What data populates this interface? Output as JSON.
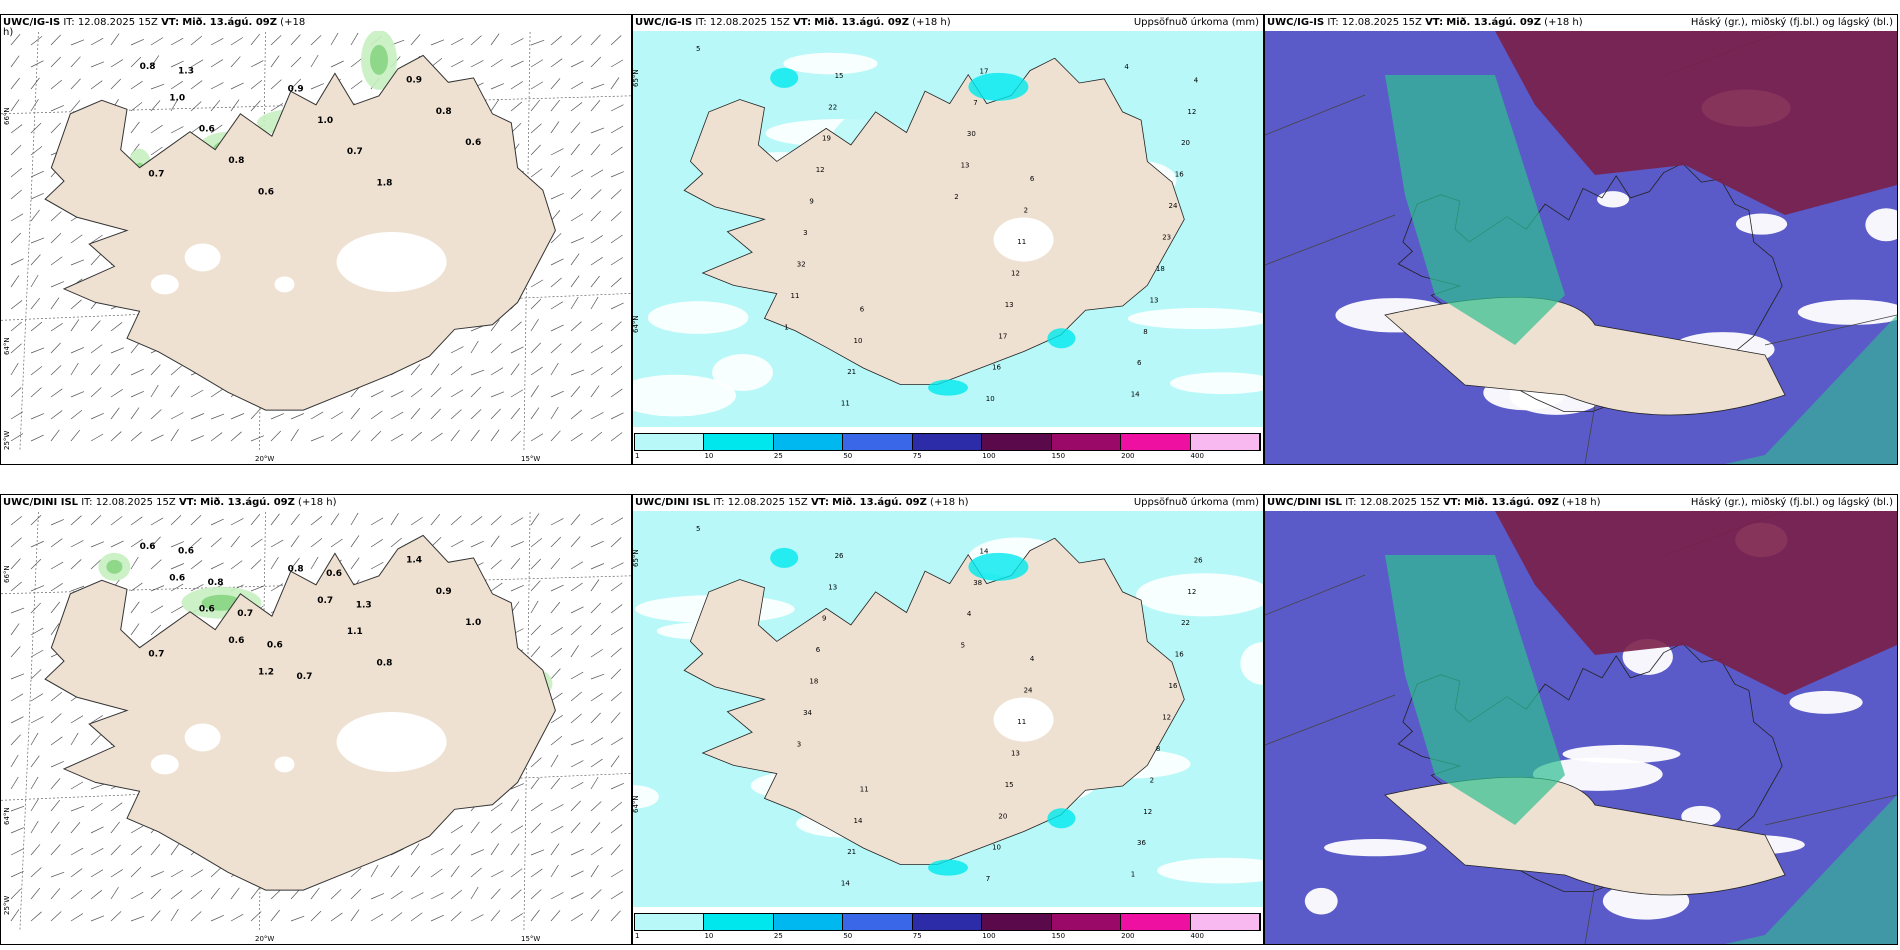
{
  "rows": [
    {
      "model": "UWC/IG-IS",
      "it_label": "IT:",
      "it_value": "12.08.2025 15Z",
      "vt_label": "VT:",
      "vt_value": "Mið. 13.ágú. 09Z",
      "lead": "(+18",
      "lead2": "h)",
      "lead_full": "(+18 h)",
      "precip_title": "Uppsöfnuð úrkoma (mm)",
      "cloud_title": "Háský (gr.), miðský (fj.bl.) og lágský (bl.)",
      "wind_labels": [
        "0.8",
        "1.0",
        "0.6",
        "0.8",
        "0.6",
        "0.9",
        "1.0",
        "0.7",
        "1.8",
        "0.9",
        "0.8",
        "0.6",
        "0.7",
        "1.3"
      ],
      "precip_labels": [
        "5",
        "6",
        "6",
        "4",
        "2",
        "10",
        "12",
        "11",
        "21",
        "20",
        "12",
        "11",
        "16",
        "13",
        "15",
        "24",
        "17",
        "22",
        "23",
        "16",
        "19",
        "18",
        "10",
        "12",
        "13",
        "17",
        "9",
        "8",
        "7",
        "3",
        "6",
        "30",
        "32",
        "14",
        "13",
        "11",
        "4",
        "2",
        "1"
      ]
    },
    {
      "model": "UWC/DINI ISL",
      "it_label": "IT:",
      "it_value": "12.08.2025 15Z",
      "vt_label": "VT:",
      "vt_value": "Mið. 13.ágú. 09Z",
      "lead_full": "(+18 h)",
      "precip_title": "Uppsöfnuð úrkoma (mm)",
      "cloud_title": "Háský (gr.), miðský (fj.bl.) og lágský (bl.)",
      "wind_labels": [
        "0.6",
        "0.6",
        "0.6",
        "0.6",
        "1.2",
        "0.8",
        "0.7",
        "1.1",
        "0.8",
        "1.4",
        "0.9",
        "1.0",
        "0.7",
        "0.6",
        "0.8",
        "0.7",
        "0.6",
        "0.7",
        "0.6",
        "1.3"
      ],
      "precip_labels": [
        "5",
        "4",
        "11",
        "26",
        "24",
        "14",
        "12",
        "11",
        "21",
        "22",
        "13",
        "14",
        "16",
        "15",
        "26",
        "16",
        "20",
        "13",
        "12",
        "10",
        "9",
        "8",
        "7",
        "6",
        "2",
        "14",
        "18",
        "12",
        "38",
        "34",
        "36",
        "4",
        "3",
        "1",
        "5"
      ]
    }
  ],
  "axis": {
    "lat_66": "66°N",
    "lat_64": "64°N",
    "lon_25": "25°W",
    "lon_20": "20°W",
    "lon_15": "15°W"
  },
  "colorbar": {
    "ticks": [
      "1",
      "10",
      "25",
      "50",
      "75",
      "100",
      "150",
      "200",
      "400"
    ],
    "colors": [
      "#b8f8f8",
      "#00e8ee",
      "#00b8f0",
      "#3a66e8",
      "#2c2ca8",
      "#5a0a4a",
      "#9a0868",
      "#ee10a0",
      "#f8b8f0"
    ]
  },
  "colors": {
    "land": "#efe1d1",
    "wind_green_light": "#c8f0c0",
    "wind_green": "#7fd27a",
    "precip_light": "#b8f8f8",
    "precip_mid": "#00e8ee",
    "cloud_high": "#7a1f48",
    "cloud_mid": "#2fbf90",
    "cloud_low": "#5a5ac8"
  }
}
